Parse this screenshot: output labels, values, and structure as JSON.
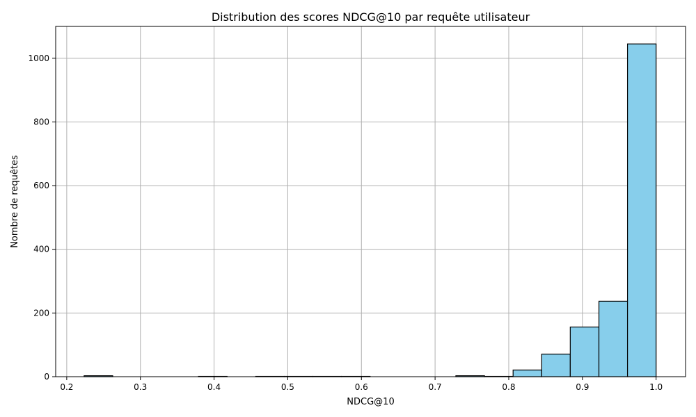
{
  "chart_data": {
    "type": "bar",
    "title": "Distribution des scores NDCG@10 par requête utilisateur",
    "xlabel": "NDCG@10",
    "ylabel": "Nombre de requêtes",
    "xlim": [
      0.185,
      1.04
    ],
    "ylim": [
      0,
      1100
    ],
    "xticks": [
      0.2,
      0.3,
      0.4,
      0.5,
      0.6,
      0.7,
      0.8,
      0.9,
      1.0
    ],
    "xtick_labels": [
      "0.2",
      "0.3",
      "0.4",
      "0.5",
      "0.6",
      "0.7",
      "0.8",
      "0.9",
      "1.0"
    ],
    "yticks": [
      0,
      200,
      400,
      600,
      800,
      1000
    ],
    "ytick_labels": [
      "0",
      "200",
      "400",
      "600",
      "800",
      "1000"
    ],
    "grid": true,
    "bar_color": "#87ceeb",
    "edge_color": "#000000",
    "bins": [
      {
        "x0": 0.2236,
        "x1": 0.2624,
        "count": 3
      },
      {
        "x0": 0.2624,
        "x1": 0.3012,
        "count": 0
      },
      {
        "x0": 0.3012,
        "x1": 0.34,
        "count": 0
      },
      {
        "x0": 0.34,
        "x1": 0.3788,
        "count": 0
      },
      {
        "x0": 0.3788,
        "x1": 0.4177,
        "count": 1
      },
      {
        "x0": 0.4177,
        "x1": 0.4565,
        "count": 0
      },
      {
        "x0": 0.4565,
        "x1": 0.4953,
        "count": 1
      },
      {
        "x0": 0.4953,
        "x1": 0.5341,
        "count": 1
      },
      {
        "x0": 0.5341,
        "x1": 0.5729,
        "count": 1
      },
      {
        "x0": 0.5729,
        "x1": 0.6118,
        "count": 1
      },
      {
        "x0": 0.6118,
        "x1": 0.6506,
        "count": 0
      },
      {
        "x0": 0.6506,
        "x1": 0.6894,
        "count": 0
      },
      {
        "x0": 0.6894,
        "x1": 0.7282,
        "count": 0
      },
      {
        "x0": 0.7282,
        "x1": 0.7671,
        "count": 3
      },
      {
        "x0": 0.7671,
        "x1": 0.8059,
        "count": 1
      },
      {
        "x0": 0.8059,
        "x1": 0.8447,
        "count": 21
      },
      {
        "x0": 0.8447,
        "x1": 0.8835,
        "count": 71
      },
      {
        "x0": 0.8835,
        "x1": 0.9224,
        "count": 156
      },
      {
        "x0": 0.9224,
        "x1": 0.9612,
        "count": 237
      },
      {
        "x0": 0.9612,
        "x1": 1.0,
        "count": 1045
      }
    ]
  }
}
